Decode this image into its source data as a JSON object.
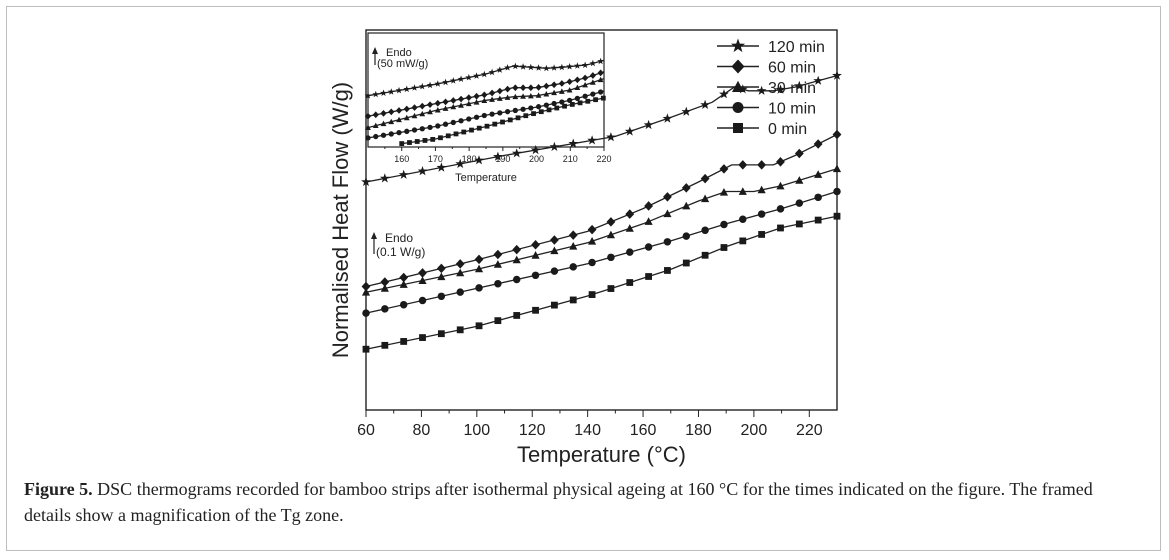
{
  "figure": {
    "caption_label": "Figure 5.",
    "caption_text": " DSC thermograms recorded for bamboo strips after isothermal physical ageing at 160 °C for the times indicated on the figure. The framed details show a magnification of the Tg zone."
  },
  "chart_data": [
    {
      "type": "line",
      "xlabel": "Temperature (°C)",
      "ylabel": "Normalised Heat Flow (W/g)",
      "xlim": [
        60,
        230
      ],
      "xticks": [
        60,
        80,
        100,
        120,
        140,
        160,
        180,
        200,
        220
      ],
      "yticks_shown": false,
      "ylim": [
        0,
        1
      ],
      "annotation": {
        "line1": "Endo",
        "line2": "(0.1 W/g)",
        "arrow": "up"
      },
      "legend": {
        "placement": "top-right"
      },
      "series": [
        {
          "name": "120 min",
          "marker": "star",
          "points": [
            [
              60,
              0.6
            ],
            [
              110,
              0.67
            ],
            [
              150,
              0.72
            ],
            [
              170,
              0.77
            ],
            [
              185,
              0.81
            ],
            [
              193,
              0.85
            ],
            [
              198,
              0.84
            ],
            [
              202,
              0.84
            ],
            [
              207,
              0.84
            ],
            [
              215,
              0.85
            ],
            [
              230,
              0.88
            ]
          ]
        },
        {
          "name": "60 min",
          "marker": "diamond",
          "points": [
            [
              60,
              0.325
            ],
            [
              100,
              0.395
            ],
            [
              140,
              0.47
            ],
            [
              160,
              0.53
            ],
            [
              180,
              0.6
            ],
            [
              192,
              0.645
            ],
            [
              200,
              0.645
            ],
            [
              207,
              0.645
            ],
            [
              215,
              0.67
            ],
            [
              230,
              0.725
            ]
          ]
        },
        {
          "name": "30 min",
          "marker": "triangle",
          "points": [
            [
              60,
              0.31
            ],
            [
              100,
              0.37
            ],
            [
              140,
              0.44
            ],
            [
              160,
              0.49
            ],
            [
              180,
              0.55
            ],
            [
              190,
              0.575
            ],
            [
              200,
              0.575
            ],
            [
              210,
              0.59
            ],
            [
              230,
              0.635
            ]
          ]
        },
        {
          "name": "10 min",
          "marker": "circle",
          "points": [
            [
              60,
              0.255
            ],
            [
              100,
              0.32
            ],
            [
              140,
              0.385
            ],
            [
              170,
              0.445
            ],
            [
              190,
              0.49
            ],
            [
              210,
              0.53
            ],
            [
              230,
              0.575
            ]
          ]
        },
        {
          "name": "0 min",
          "marker": "square",
          "points": [
            [
              60,
              0.16
            ],
            [
              100,
              0.22
            ],
            [
              140,
              0.3
            ],
            [
              170,
              0.37
            ],
            [
              190,
              0.43
            ],
            [
              210,
              0.48
            ],
            [
              230,
              0.51
            ]
          ]
        }
      ]
    },
    {
      "type": "line",
      "inset": true,
      "xlabel": "Temperature",
      "ylabel": "",
      "xlim": [
        150,
        220
      ],
      "xticks": [
        160,
        170,
        180,
        190,
        200,
        210,
        220
      ],
      "ylim": [
        0,
        1
      ],
      "annotation": {
        "line1": "Endo",
        "line2": "(50 mW/g)",
        "arrow": "up"
      },
      "series": [
        {
          "name": "120 min",
          "marker": "star",
          "points": [
            [
              150,
              0.45
            ],
            [
              170,
              0.55
            ],
            [
              185,
              0.64
            ],
            [
              193,
              0.71
            ],
            [
              198,
              0.7
            ],
            [
              203,
              0.69
            ],
            [
              208,
              0.7
            ],
            [
              215,
              0.72
            ],
            [
              220,
              0.76
            ]
          ]
        },
        {
          "name": "60 min",
          "marker": "diamond",
          "points": [
            [
              150,
              0.27
            ],
            [
              170,
              0.38
            ],
            [
              185,
              0.46
            ],
            [
              193,
              0.52
            ],
            [
              200,
              0.52
            ],
            [
              208,
              0.56
            ],
            [
              215,
              0.61
            ],
            [
              220,
              0.66
            ]
          ]
        },
        {
          "name": "30 min",
          "marker": "triangle",
          "points": [
            [
              150,
              0.17
            ],
            [
              170,
              0.32
            ],
            [
              185,
              0.41
            ],
            [
              193,
              0.44
            ],
            [
              200,
              0.45
            ],
            [
              210,
              0.5
            ],
            [
              220,
              0.6
            ]
          ]
        },
        {
          "name": "10 min",
          "marker": "circle",
          "points": [
            [
              150,
              0.08
            ],
            [
              170,
              0.18
            ],
            [
              185,
              0.28
            ],
            [
              200,
              0.35
            ],
            [
              210,
              0.41
            ],
            [
              220,
              0.49
            ]
          ]
        },
        {
          "name": "0 min",
          "marker": "square",
          "points": [
            [
              160,
              0.03
            ],
            [
              170,
              0.07
            ],
            [
              185,
              0.18
            ],
            [
              200,
              0.3
            ],
            [
              210,
              0.37
            ],
            [
              220,
              0.43
            ]
          ]
        }
      ]
    }
  ]
}
